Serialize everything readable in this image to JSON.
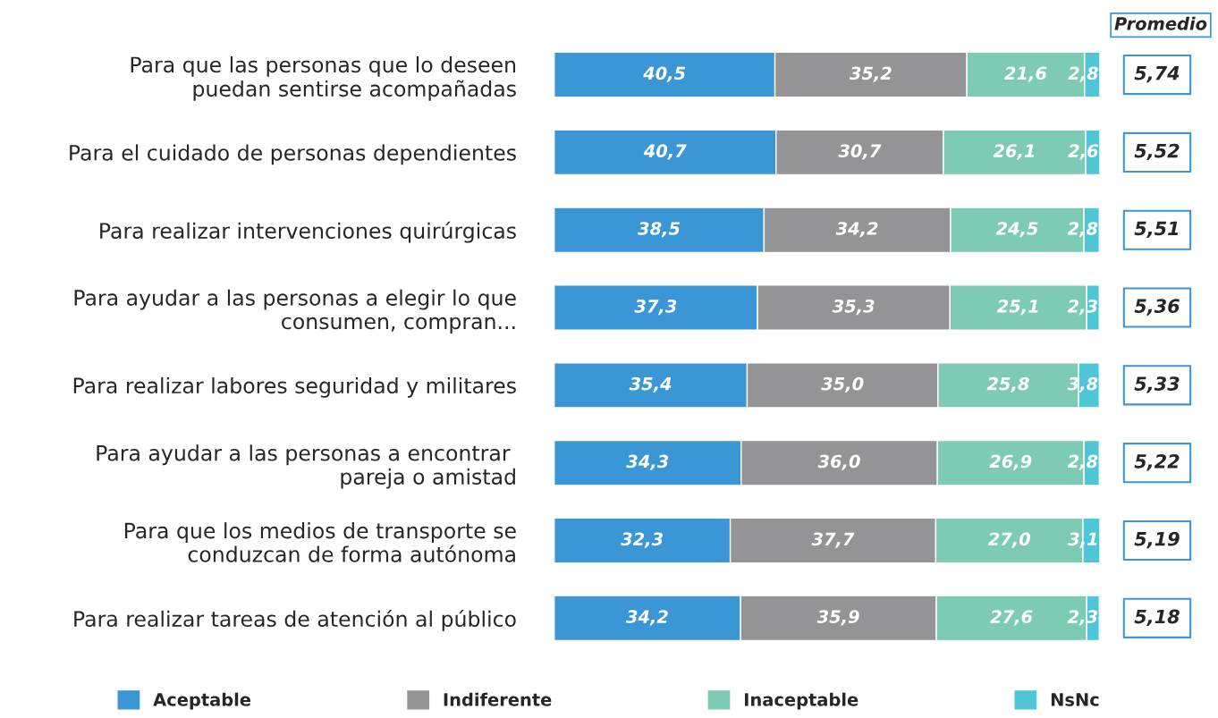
{
  "chart_data": {
    "type": "bar",
    "orientation": "horizontal",
    "stacked": true,
    "legend": "bottom",
    "grid": false,
    "tick_labels": "y",
    "categories": [
      "Para que las personas que lo deseen\npuedan sentirse acompañadas",
      "Para el cuidado de personas dependientes",
      "Para realizar intervenciones quirúrgicas",
      "Para ayudar a las personas a elegir lo que\nconsumen, compran...",
      "Para realizar labores seguridad y militares",
      "Para ayudar a las personas a encontrar \npareja o amistad",
      "Para que los medios de transporte se\nconduzcan de forma autónoma",
      "Para realizar tareas de atención al público"
    ],
    "series": [
      {
        "name": "Aceptable",
        "color": "#3a96d4",
        "values": [
          40.5,
          40.7,
          38.5,
          37.3,
          35.4,
          34.3,
          32.3,
          34.2
        ],
        "value_labels": [
          "40,5",
          "40,7",
          "38,5",
          "37,3",
          "35,4",
          "34,3",
          "32,3",
          "34,2"
        ]
      },
      {
        "name": "Indiferente",
        "color": "#949496",
        "values": [
          35.2,
          30.7,
          34.2,
          35.3,
          35.0,
          36.0,
          37.7,
          35.9
        ],
        "value_labels": [
          "35,2",
          "30,7",
          "34,2",
          "35,3",
          "35,0",
          "36,0",
          "37,7",
          "35,9"
        ]
      },
      {
        "name": "Inaceptable",
        "color": "#7dcbb4",
        "values": [
          21.6,
          26.1,
          24.5,
          25.1,
          25.8,
          26.9,
          27.0,
          27.6
        ],
        "value_labels": [
          "21,6",
          "26,1",
          "24,5",
          "25,1",
          "25,8",
          "26,9",
          "27,0",
          "27,6"
        ]
      },
      {
        "name": "NsNc",
        "color": "#4ec6d6",
        "values": [
          2.8,
          2.6,
          2.8,
          2.3,
          3.8,
          2.8,
          3.1,
          2.3
        ],
        "value_labels": [
          "2,8",
          "2,6",
          "2,8",
          "2,3",
          "3,8",
          "2,8",
          "3,1",
          "2,3"
        ]
      }
    ],
    "annotations": [
      "Promedio",
      "5,74",
      "5,52",
      "5,51",
      "5,36",
      "5,33",
      "5,22",
      "5,19",
      "5,18"
    ]
  }
}
